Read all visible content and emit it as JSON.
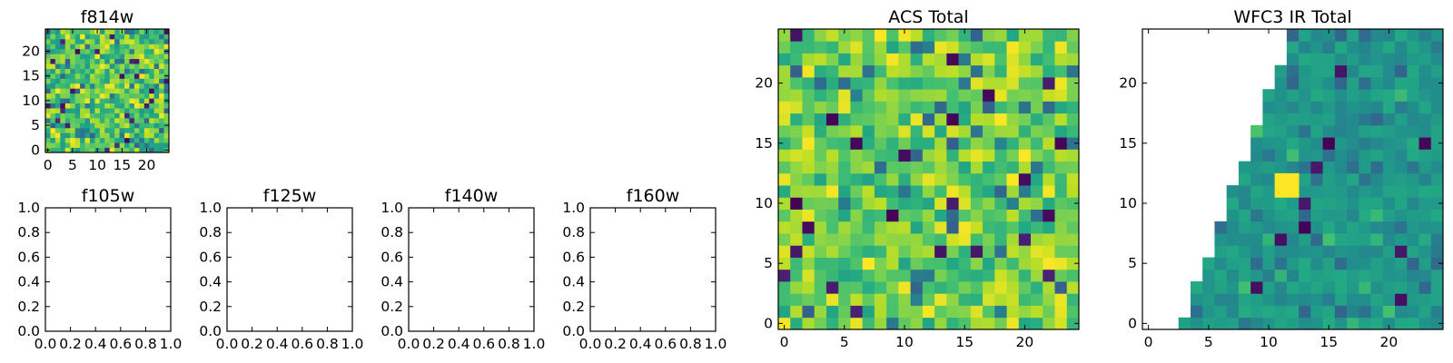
{
  "chart_data": [
    {
      "type": "heatmap",
      "title": "f814w",
      "xlim": [
        -0.5,
        24.5
      ],
      "ylim": [
        -0.5,
        24.5
      ],
      "xticks": [
        0,
        5,
        10,
        15,
        20
      ],
      "yticks": [
        0,
        5,
        10,
        15,
        20
      ],
      "xtick_labels": [
        "0",
        "5",
        "10",
        "15",
        "20"
      ],
      "ytick_labels": [
        "0",
        "5",
        "10",
        "15",
        "20"
      ],
      "colormap": "viridis",
      "grid": false,
      "values": "25x25 pixel image (noise)"
    },
    {
      "type": "heatmap",
      "title": "f105w",
      "xlim": [
        0,
        1
      ],
      "ylim": [
        0,
        1
      ],
      "xtick_labels": [
        "0.0",
        "0.2",
        "0.4",
        "0.6",
        "0.8",
        "1.0"
      ],
      "ytick_labels": [
        "0.0",
        "0.2",
        "0.4",
        "0.6",
        "0.8",
        "1.0"
      ],
      "values": []
    },
    {
      "type": "heatmap",
      "title": "f125w",
      "xlim": [
        0,
        1
      ],
      "ylim": [
        0,
        1
      ],
      "xtick_labels": [
        "0.0",
        "0.2",
        "0.4",
        "0.6",
        "0.8",
        "1.0"
      ],
      "ytick_labels": [
        "0.0",
        "0.2",
        "0.4",
        "0.6",
        "0.8",
        "1.0"
      ],
      "values": []
    },
    {
      "type": "heatmap",
      "title": "f140w",
      "xlim": [
        0,
        1
      ],
      "ylim": [
        0,
        1
      ],
      "xtick_labels": [
        "0.0",
        "0.2",
        "0.4",
        "0.6",
        "0.8",
        "1.0"
      ],
      "ytick_labels": [
        "0.0",
        "0.2",
        "0.4",
        "0.6",
        "0.8",
        "1.0"
      ],
      "values": []
    },
    {
      "type": "heatmap",
      "title": "f160w",
      "xlim": [
        0,
        1
      ],
      "ylim": [
        0,
        1
      ],
      "xtick_labels": [
        "0.0",
        "0.2",
        "0.4",
        "0.6",
        "0.8",
        "1.0"
      ],
      "ytick_labels": [
        "0.0",
        "0.2",
        "0.4",
        "0.6",
        "0.8",
        "1.0"
      ],
      "values": []
    },
    {
      "type": "heatmap",
      "title": "ACS Total",
      "xlim": [
        -0.5,
        24.5
      ],
      "ylim": [
        -0.5,
        24.5
      ],
      "xticks": [
        0,
        5,
        10,
        15,
        20
      ],
      "yticks": [
        0,
        5,
        10,
        15,
        20
      ],
      "xtick_labels": [
        "0",
        "5",
        "10",
        "15",
        "20"
      ],
      "ytick_labels": [
        "0",
        "5",
        "10",
        "15",
        "20"
      ],
      "colormap": "viridis",
      "grid": false,
      "values": "25x25 pixel image (noise)"
    },
    {
      "type": "heatmap",
      "title": "WFC3 IR Total",
      "xlim": [
        -0.5,
        24.5
      ],
      "ylim": [
        -0.5,
        24.5
      ],
      "xticks": [
        0,
        5,
        10,
        15,
        20
      ],
      "yticks": [
        0,
        5,
        10,
        15,
        20
      ],
      "xtick_labels": [
        "0",
        "5",
        "10",
        "15",
        "20"
      ],
      "ytick_labels": [
        "0",
        "5",
        "10",
        "15",
        "20"
      ],
      "colormap": "viridis",
      "grid": false,
      "values": "25x25 pixel image (noise); upper-left triangular region masked (blank)"
    }
  ],
  "colors": {
    "viridis_dark": "#440154",
    "viridis_blue": "#31688e",
    "viridis_teal": "#21918c",
    "viridis_green": "#35b779",
    "viridis_yellow": "#fde725"
  }
}
